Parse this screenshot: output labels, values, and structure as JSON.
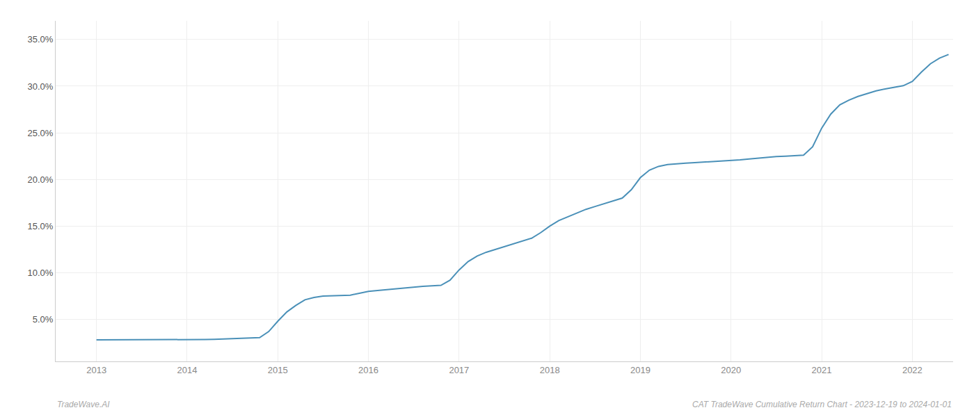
{
  "chart_data": {
    "type": "line",
    "color": "#4a90b8",
    "grid": true,
    "x": [
      2013.0,
      2013.1,
      2013.2,
      2013.3,
      2013.4,
      2013.5,
      2013.6,
      2013.7,
      2013.8,
      2013.9,
      2014.0,
      2014.1,
      2014.2,
      2014.3,
      2014.4,
      2014.5,
      2014.6,
      2014.7,
      2014.8,
      2014.9,
      2015.0,
      2015.1,
      2015.2,
      2015.3,
      2015.4,
      2015.5,
      2015.6,
      2015.7,
      2015.8,
      2015.9,
      2016.0,
      2016.1,
      2016.2,
      2016.3,
      2016.4,
      2016.5,
      2016.6,
      2016.7,
      2016.8,
      2016.9,
      2017.0,
      2017.1,
      2017.2,
      2017.3,
      2017.4,
      2017.5,
      2017.6,
      2017.7,
      2017.8,
      2017.9,
      2018.0,
      2018.1,
      2018.2,
      2018.3,
      2018.4,
      2018.5,
      2018.6,
      2018.7,
      2018.8,
      2018.9,
      2019.0,
      2019.1,
      2019.2,
      2019.3,
      2019.4,
      2019.5,
      2019.6,
      2019.7,
      2019.8,
      2019.9,
      2020.0,
      2020.1,
      2020.2,
      2020.3,
      2020.4,
      2020.5,
      2020.6,
      2020.7,
      2020.8,
      2020.9,
      2021.0,
      2021.1,
      2021.2,
      2021.3,
      2021.4,
      2021.5,
      2021.6,
      2021.7,
      2021.8,
      2021.9,
      2022.0,
      2022.1,
      2022.2,
      2022.3,
      2022.4
    ],
    "values": [
      2.8,
      2.8,
      2.8,
      2.8,
      2.8,
      2.8,
      2.8,
      2.8,
      2.8,
      2.82,
      2.85,
      2.85,
      2.85,
      2.87,
      2.9,
      2.92,
      2.95,
      3.0,
      3.05,
      3.7,
      4.8,
      5.8,
      6.5,
      7.1,
      7.35,
      7.5,
      7.52,
      7.55,
      7.6,
      7.8,
      8.0,
      8.1,
      8.2,
      8.3,
      8.4,
      8.5,
      8.55,
      8.6,
      8.65,
      9.2,
      10.3,
      11.2,
      11.8,
      12.2,
      12.5,
      12.8,
      13.1,
      13.4,
      13.7,
      14.3,
      15.0,
      15.6,
      16.0,
      16.4,
      16.8,
      17.1,
      17.4,
      17.7,
      18.0,
      18.9,
      20.2,
      21.0,
      21.4,
      21.6,
      21.7,
      21.75,
      21.8,
      21.85,
      21.9,
      21.95,
      22.0,
      22.1,
      22.2,
      22.3,
      22.4,
      22.45,
      22.5,
      22.55,
      22.6,
      23.5,
      25.5,
      27.0,
      28.0,
      28.5,
      28.9,
      29.2,
      29.5,
      29.7,
      29.85,
      30.05,
      30.5,
      31.5,
      32.4,
      33.0,
      33.4
    ],
    "xlim": [
      2012.55,
      2022.45
    ],
    "xticks": [
      2013,
      2014,
      2015,
      2016,
      2017,
      2018,
      2019,
      2020,
      2021,
      2022
    ],
    "ylim": [
      0.5,
      37.0
    ],
    "yticks": [
      {
        "value": 5.0,
        "label": "5.0%"
      },
      {
        "value": 10.0,
        "label": "10.0%"
      },
      {
        "value": 15.0,
        "label": "15.0%"
      },
      {
        "value": 20.0,
        "label": "20.0%"
      },
      {
        "value": 25.0,
        "label": "25.0%"
      },
      {
        "value": 30.0,
        "label": "30.0%"
      },
      {
        "value": 35.0,
        "label": "35.0%"
      }
    ],
    "annotations": [
      "TradeWave.AI",
      "CAT TradeWave Cumulative Return Chart - 2023-12-19 to 2024-01-01"
    ]
  }
}
